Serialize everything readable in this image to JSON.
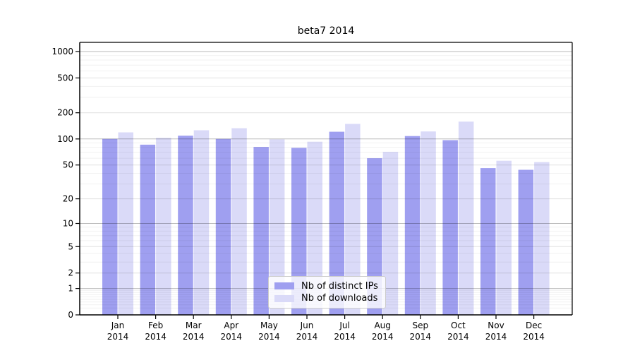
{
  "chart_data": {
    "type": "bar",
    "title": "beta7 2014",
    "categories": [
      "Jan",
      "Feb",
      "Mar",
      "Apr",
      "May",
      "Jun",
      "Jul",
      "Aug",
      "Sep",
      "Oct",
      "Nov",
      "Dec"
    ],
    "category_year": "2014",
    "series": [
      {
        "name": "Nb of distinct IPs",
        "key": "distinct-ips",
        "color": "#9f9ff0",
        "values": [
          100,
          86,
          109,
          100,
          81,
          79,
          121,
          60,
          108,
          97,
          46,
          44
        ]
      },
      {
        "name": "Nb of downloads",
        "key": "downloads",
        "color": "#dadaf8",
        "values": [
          119,
          103,
          126,
          133,
          99,
          93,
          149,
          71,
          122,
          158,
          56,
          54
        ]
      }
    ],
    "yscale": "log1p",
    "ylim": [
      0,
      1000
    ],
    "yticks": [
      0,
      1,
      2,
      5,
      10,
      20,
      50,
      100,
      200,
      500,
      1000
    ],
    "grid": true,
    "legend_position": "bottom-center",
    "colors": {
      "grid_decade": "rgba(0,0,0,0.27)",
      "grid_major": "rgba(0,0,0,0.12)",
      "grid_minor": "rgba(0,0,0,0.055)",
      "spine": "#000000",
      "text": "#000000"
    }
  }
}
